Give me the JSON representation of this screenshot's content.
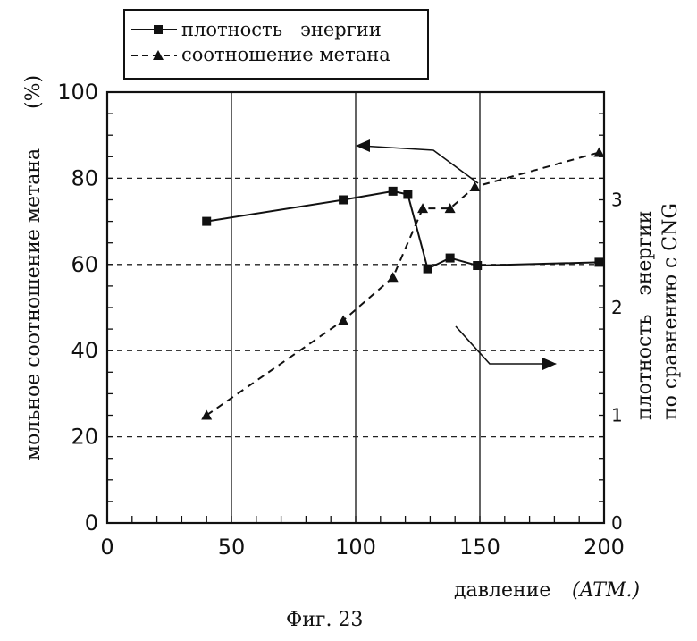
{
  "chart_data": {
    "type": "line",
    "legend": {
      "position": "top-left",
      "entries": [
        {
          "label": "плотность   энергии",
          "marker": "square",
          "line": "solid"
        },
        {
          "label": "соотношение метана",
          "marker": "triangle",
          "line": "dashed"
        }
      ]
    },
    "xlabel": "давление",
    "xlabel_unit": "(ATM.)",
    "ylabel_left": "мольное соотношение метана",
    "ylabel_left_unit": "(%)",
    "ylabel_right_line1": "плотность   энергии",
    "ylabel_right_line2": "по сравнению с CNG",
    "xlim": [
      0,
      200
    ],
    "ylim_left": [
      0,
      100
    ],
    "ylim_right": [
      0,
      4
    ],
    "x_ticks": [
      0,
      50,
      100,
      150,
      200
    ],
    "y_left_ticks": [
      0,
      20,
      40,
      60,
      80,
      100
    ],
    "y_right_ticks": [
      {
        "label": "0",
        "value": 0
      },
      {
        "label": "1",
        "value": 1
      },
      {
        "label": "2",
        "value": 2
      },
      {
        "label": "3",
        "value": 3
      }
    ],
    "grid": "vertical solid lines at x ticks; dashed horizontal lines at left-axis 20, 40, 60, 80",
    "series": [
      {
        "name": "плотность   энергии",
        "axis": "right",
        "style": "solid",
        "marker": "square",
        "x": [
          40,
          95,
          115,
          121,
          129,
          138,
          149,
          198
        ],
        "y": [
          2.8,
          3.0,
          3.08,
          3.05,
          2.36,
          2.46,
          2.39,
          2.42
        ]
      },
      {
        "name": "соотношение метана",
        "axis": "left",
        "style": "dashed",
        "marker": "triangle",
        "x": [
          40,
          95,
          115,
          127,
          138,
          148,
          198
        ],
        "y": [
          25,
          47,
          57,
          73,
          73,
          78,
          86
        ]
      }
    ],
    "annotations": [
      {
        "type": "arrow",
        "direction": "left",
        "refers_to": "соотношение метана"
      },
      {
        "type": "arrow",
        "direction": "right",
        "refers_to": "плотность   энергии"
      }
    ]
  },
  "caption": "Фиг. 23"
}
